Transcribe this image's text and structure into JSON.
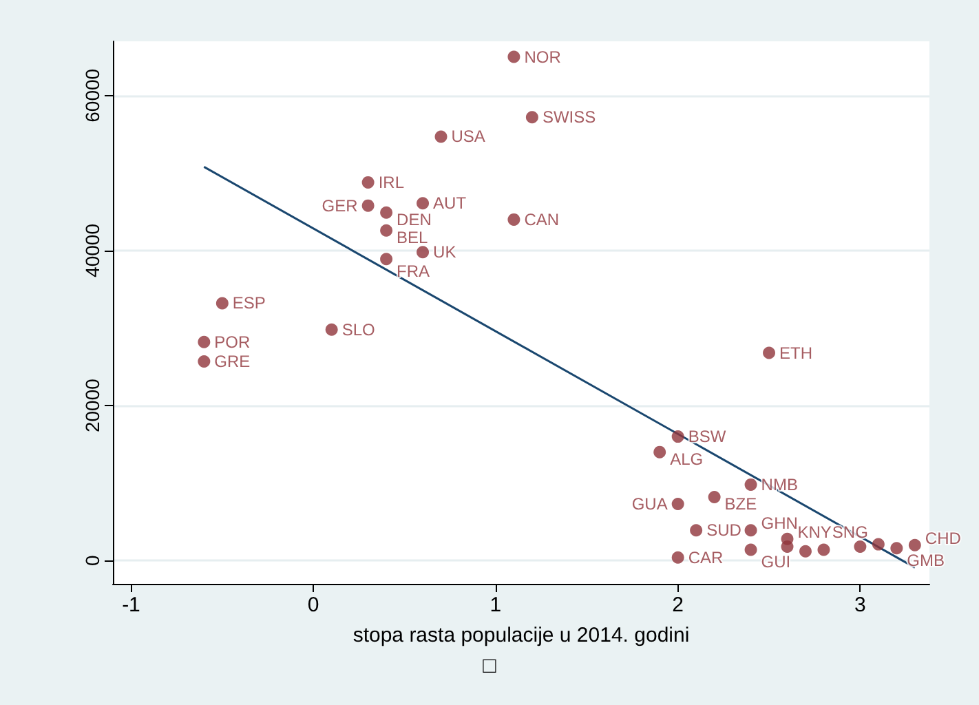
{
  "chart_data": {
    "type": "scatter",
    "xlabel": "stopa rasta populacije u 2014. godini",
    "annotations": [
      "□"
    ],
    "xlim": [
      -1.1,
      3.38
    ],
    "xticks": [
      -1,
      0,
      1,
      2,
      3
    ],
    "ylim": [
      -3000,
      67000
    ],
    "yticks": [
      0,
      20000,
      40000,
      60000
    ],
    "grid": "y",
    "marker": "circle",
    "series": [
      {
        "type": "scatter",
        "color": "#90353b",
        "x": [
          1.1,
          1.2,
          0.7,
          0.3,
          0.3,
          0.6,
          0.4,
          0.4,
          1.1,
          0.6,
          0.4,
          -0.5,
          0.1,
          -0.6,
          -0.6,
          2.5,
          2.0,
          1.9,
          2.4,
          2.2,
          2.0,
          2.1,
          2.4,
          2.6,
          2.0,
          2.4,
          2.6,
          2.7,
          2.8,
          3.0,
          3.1,
          3.2,
          3.3
        ],
        "values": [
          65000,
          57200,
          54700,
          48800,
          45800,
          46100,
          44900,
          42600,
          44000,
          39800,
          38900,
          33200,
          29800,
          28200,
          25700,
          26800,
          16000,
          14000,
          9800,
          8200,
          7300,
          3900,
          3900,
          2800,
          400,
          1400,
          1800,
          1200,
          1400,
          1800,
          2100,
          1600,
          2000
        ],
        "value_labels": [
          "NOR",
          "SWISS",
          "USA",
          "IRL",
          "GER",
          "AUT",
          "DEN",
          "BEL",
          "CAN",
          "UK",
          "FRA",
          "ESP",
          "SLO",
          "POR",
          "GRE",
          "ETH",
          "BSW",
          "ALG",
          "NMB",
          "BZE",
          "GUA",
          "SUD",
          "GHN",
          "KNY",
          "CAR",
          "GUI",
          null,
          null,
          null,
          null,
          "SNG",
          "GMB",
          "CHD"
        ]
      },
      {
        "type": "line",
        "color": "#1a476f",
        "marker": "none",
        "x": [
          -0.6,
          3.3
        ],
        "values": [
          50800,
          -900
        ]
      }
    ]
  }
}
